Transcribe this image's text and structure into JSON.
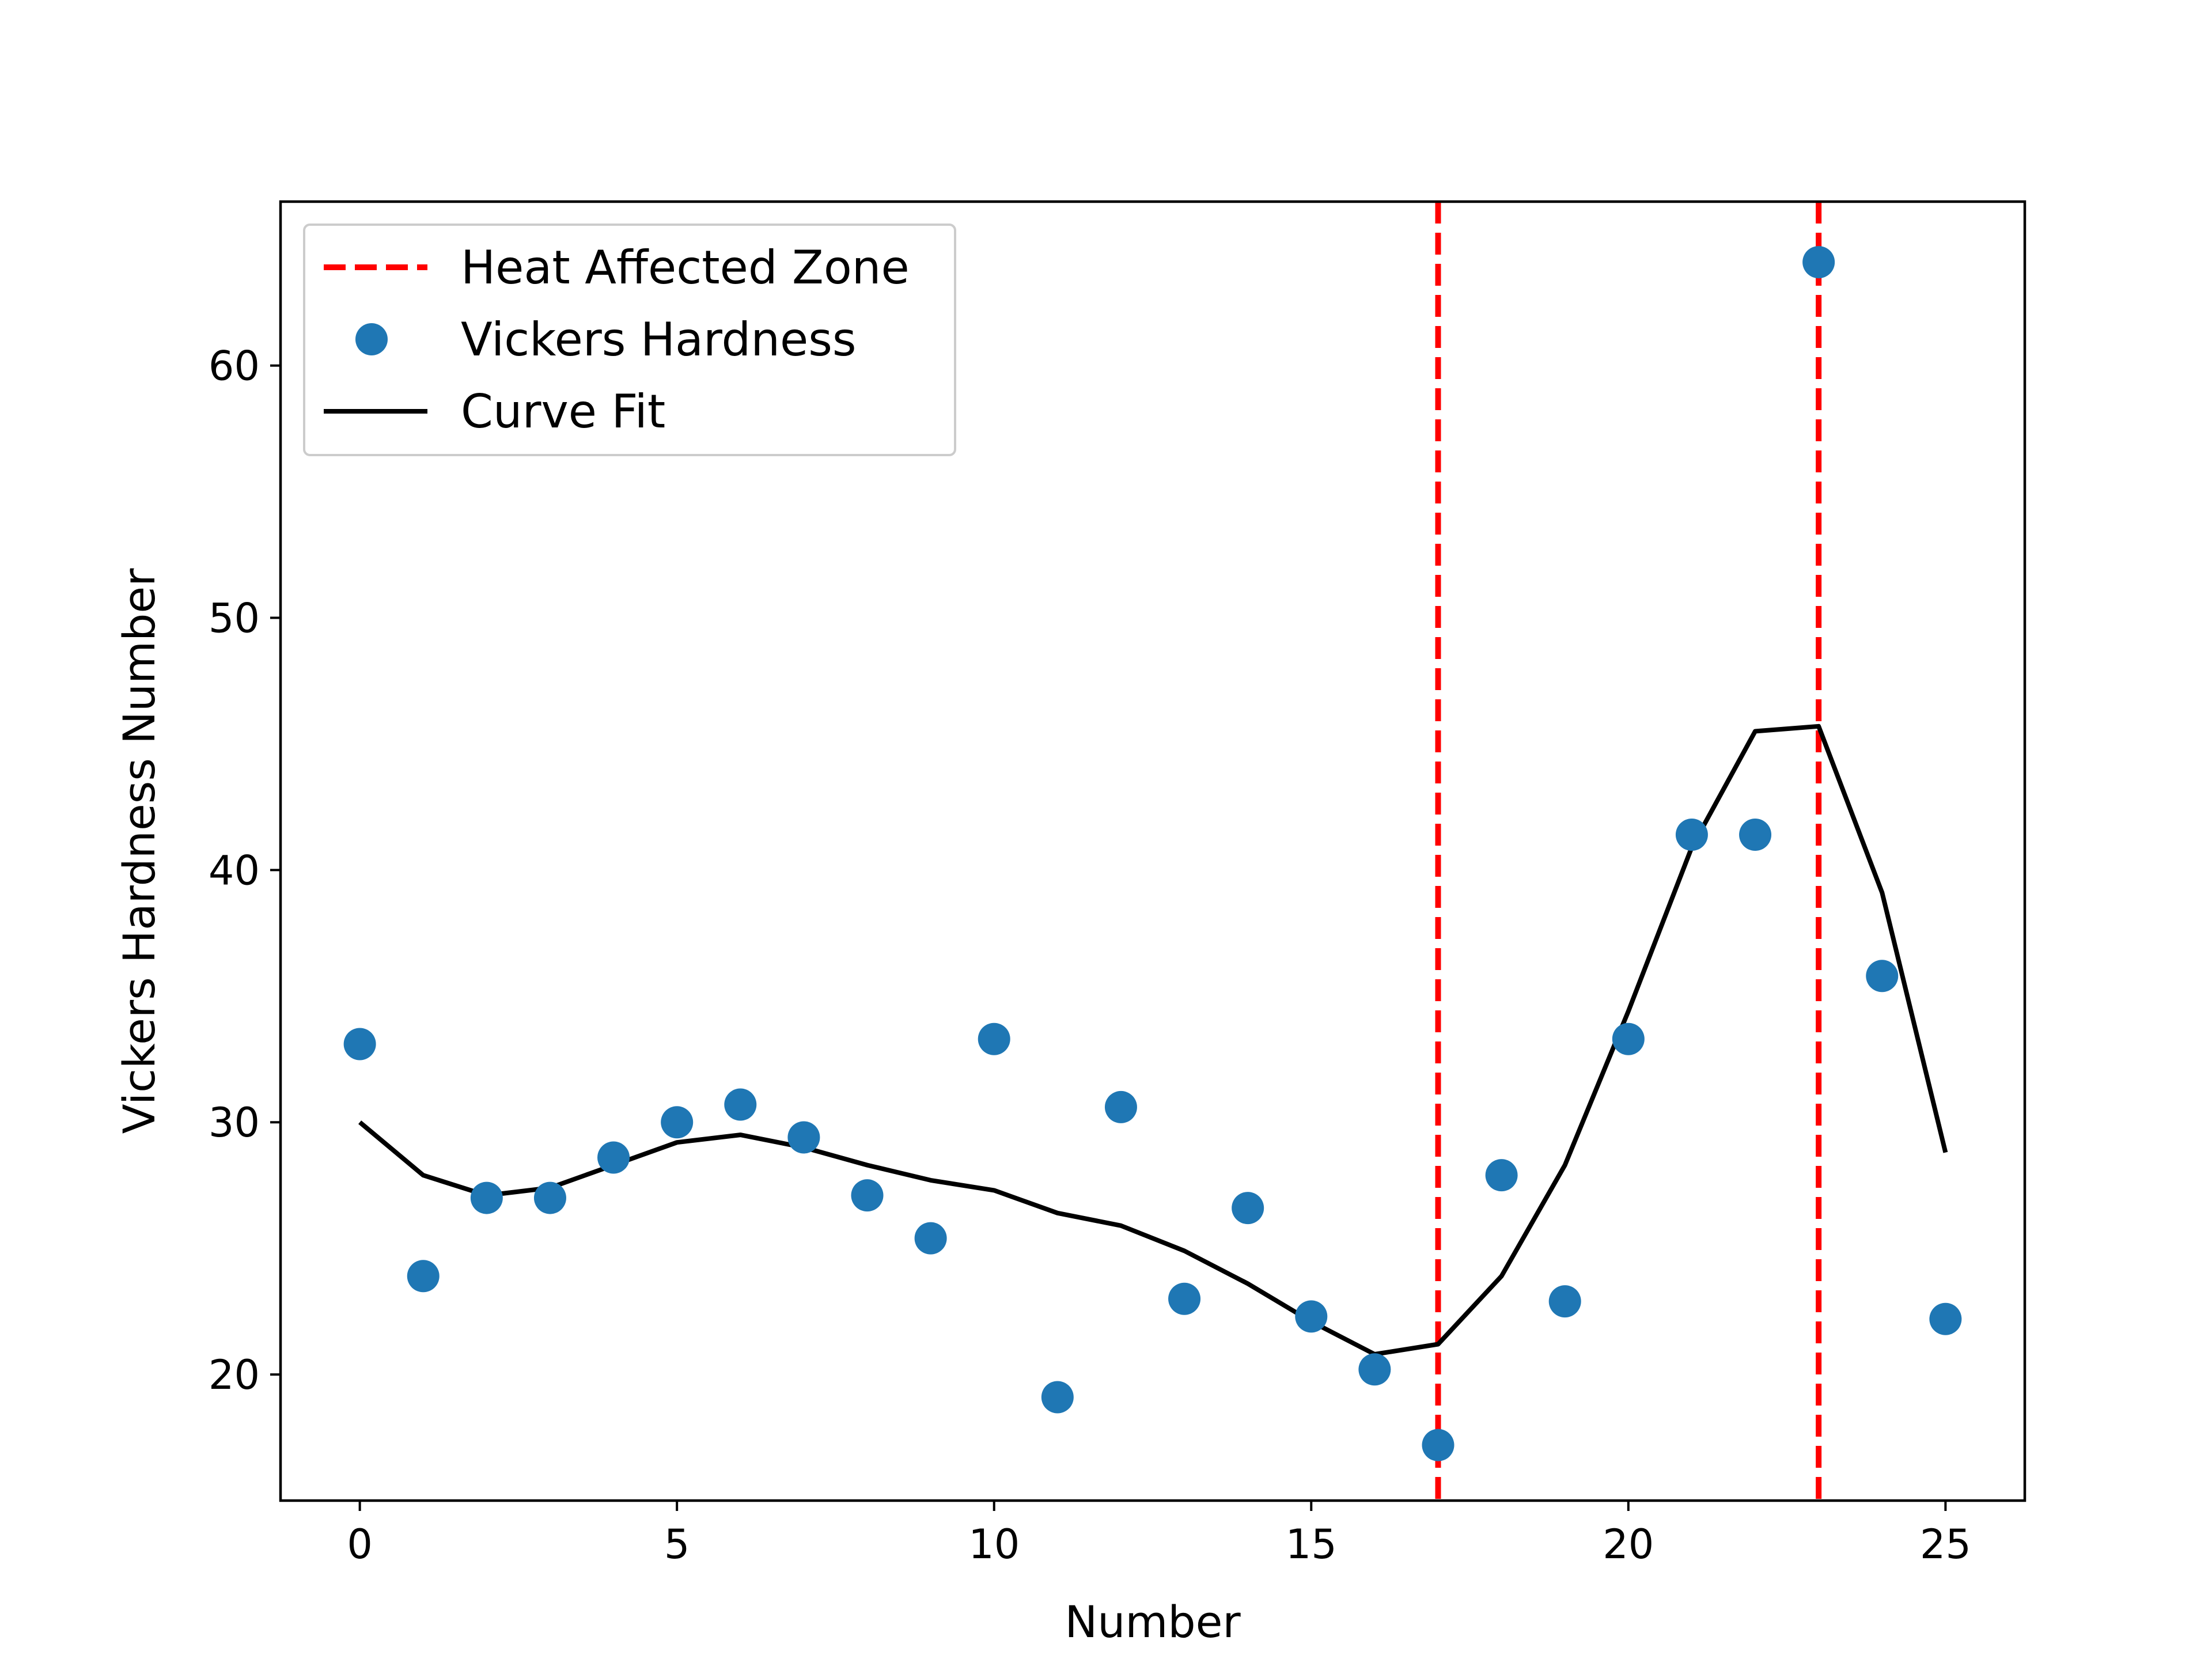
{
  "chart_data": {
    "type": "scatter",
    "title": "",
    "xlabel": "Number",
    "ylabel": "Vickers Hardness Number",
    "xlim": [
      -1.25,
      26.25
    ],
    "ylim": [
      15.0,
      66.5
    ],
    "xticks": [
      0,
      5,
      10,
      15,
      20,
      25
    ],
    "yticks": [
      20,
      30,
      40,
      50,
      60
    ],
    "grid": false,
    "legend_position": "top-left",
    "reference_lines": {
      "name": "Heat Affected Zone",
      "orientation": "vertical",
      "x": [
        17,
        23
      ],
      "style": "dashed",
      "color": "#ff0000"
    },
    "series": [
      {
        "name": "Vickers Hardness",
        "kind": "scatter",
        "color": "#1f77b4",
        "x": [
          0,
          1,
          2,
          3,
          4,
          5,
          6,
          7,
          8,
          9,
          10,
          11,
          12,
          13,
          14,
          15,
          16,
          17,
          18,
          19,
          20,
          21,
          22,
          23,
          24,
          25
        ],
        "y": [
          33.1,
          23.9,
          27.0,
          27.0,
          28.6,
          30.0,
          30.7,
          29.4,
          27.1,
          25.4,
          33.3,
          19.1,
          30.6,
          23.0,
          26.6,
          22.3,
          20.2,
          17.2,
          27.9,
          22.9,
          33.3,
          41.4,
          41.4,
          64.1,
          35.8,
          22.2
        ]
      },
      {
        "name": "Curve Fit",
        "kind": "line",
        "color": "#000000",
        "x": [
          0,
          1,
          2,
          3,
          4,
          5,
          6,
          7,
          8,
          9,
          10,
          11,
          12,
          13,
          14,
          15,
          16,
          17,
          18,
          19,
          20,
          21,
          22,
          23,
          24,
          25
        ],
        "y": [
          30.0,
          27.9,
          27.1,
          27.4,
          28.3,
          29.2,
          29.5,
          29.0,
          28.3,
          27.7,
          27.3,
          26.4,
          25.9,
          24.9,
          23.6,
          22.1,
          20.8,
          21.2,
          23.9,
          28.3,
          34.4,
          40.9,
          45.5,
          45.7,
          39.1,
          28.8
        ]
      }
    ],
    "legend": [
      {
        "label": "Heat Affected Zone",
        "symbol": "dashed-line",
        "color": "#ff0000"
      },
      {
        "label": "Vickers Hardness",
        "symbol": "dot",
        "color": "#1f77b4"
      },
      {
        "label": "Curve Fit",
        "symbol": "line",
        "color": "#000000"
      }
    ]
  }
}
